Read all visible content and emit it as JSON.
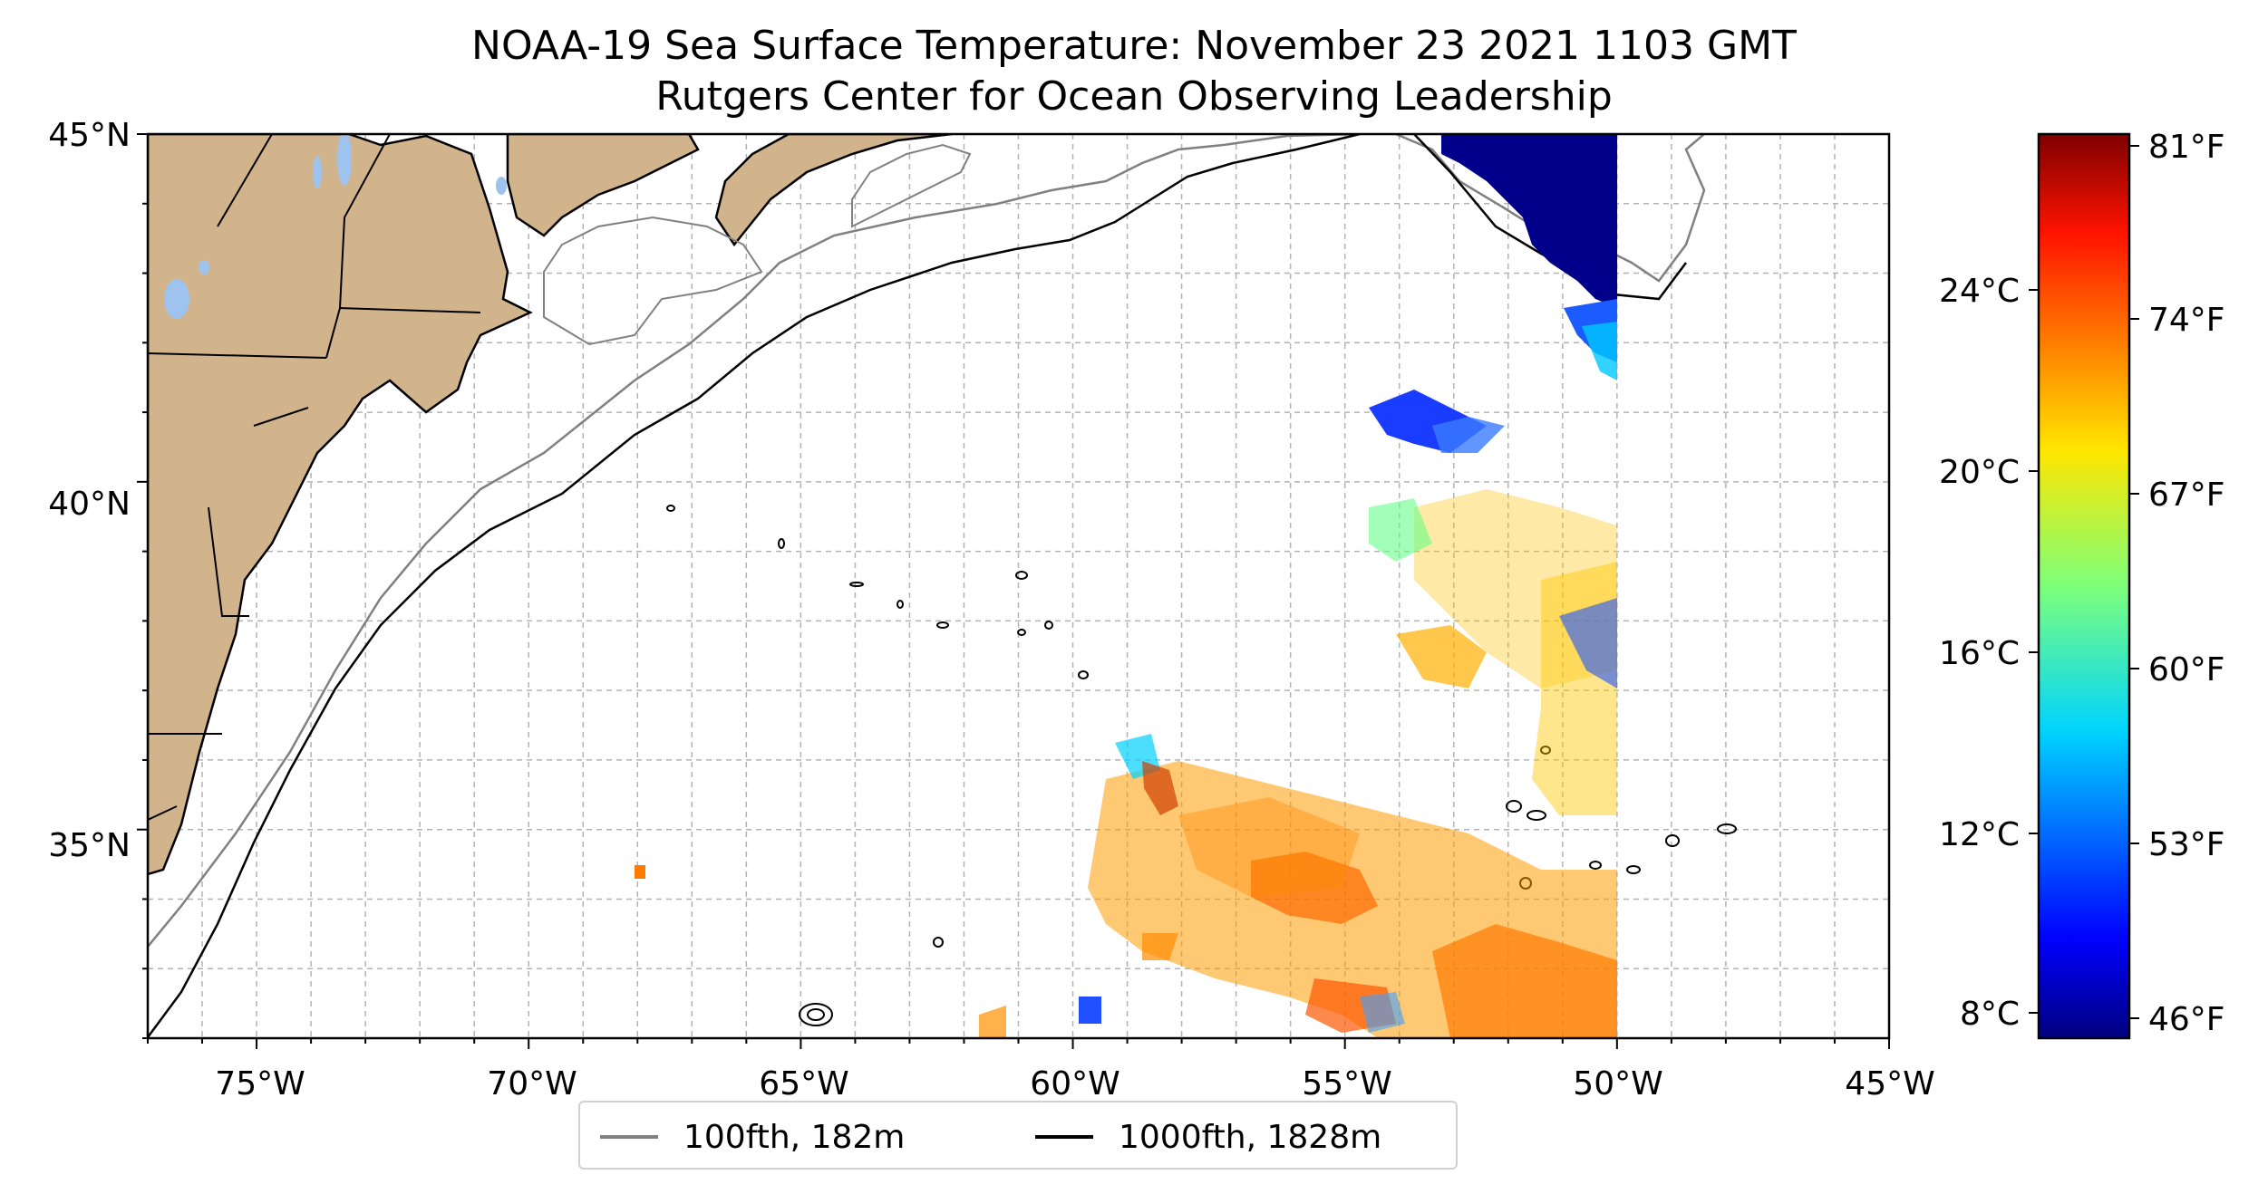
{
  "title": {
    "line1": "NOAA-19 Sea Surface Temperature: November 23 2021 1103 GMT",
    "line2": "Rutgers Center for Ocean Observing Leadership"
  },
  "map": {
    "lon_range": [
      -77,
      -45
    ],
    "lat_range": [
      32,
      45
    ],
    "lon_tick_labels": [
      "75°W",
      "70°W",
      "65°W",
      "60°W",
      "55°W",
      "50°W",
      "45°W"
    ],
    "lat_tick_labels": [
      "45°N",
      "40°N",
      "35°N"
    ],
    "grid": true,
    "land_color": "#d2b48c",
    "lake_color": "#9ec3ee",
    "sst_data_eastern_limit_label": "50°W"
  },
  "colorbar": {
    "colormap": "jet",
    "celsius_labels": [
      "24°C",
      "20°C",
      "16°C",
      "12°C",
      "8°C"
    ],
    "fahrenheit_labels": [
      "81°F",
      "74°F",
      "67°F",
      "60°F",
      "53°F",
      "46°F"
    ],
    "celsius_values": [
      24,
      20,
      16,
      12,
      8
    ],
    "fahrenheit_values": [
      81,
      74,
      67,
      60,
      53,
      46
    ]
  },
  "legend": {
    "items": [
      {
        "label": "100fth, 182m",
        "color": "#808080"
      },
      {
        "label": "1000fth, 1828m",
        "color": "#000000"
      }
    ]
  }
}
